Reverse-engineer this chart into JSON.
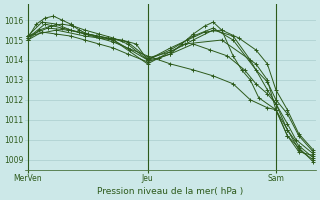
{
  "title": "",
  "xlabel": "Pression niveau de la mer( hPa )",
  "background_color": "#cce8e8",
  "plot_bg_color": "#cce8e8",
  "grid_color": "#aacece",
  "line_color": "#2d5a1b",
  "text_color": "#2d5a1b",
  "ylim": [
    1008.5,
    1016.8
  ],
  "yticks": [
    1009,
    1010,
    1011,
    1012,
    1013,
    1014,
    1015,
    1016
  ],
  "xtick_labels": [
    "MerVen",
    "Jeu",
    "Sam"
  ],
  "xtick_positions": [
    0.0,
    42.0,
    87.0
  ],
  "vline_positions": [
    0.0,
    42.0,
    87.0
  ],
  "xlim": [
    -1,
    101
  ],
  "series": [
    {
      "x": [
        0,
        3,
        6,
        9,
        12,
        15,
        18,
        21,
        28,
        33,
        38,
        42,
        46,
        50,
        54,
        58,
        62,
        65,
        68,
        72,
        75,
        78,
        81,
        87,
        91,
        95,
        100
      ],
      "y": [
        1015.1,
        1015.8,
        1016.1,
        1016.2,
        1016.0,
        1015.8,
        1015.5,
        1015.3,
        1015.1,
        1015.0,
        1014.8,
        1014.0,
        1014.1,
        1014.3,
        1014.8,
        1015.3,
        1015.7,
        1015.9,
        1015.5,
        1014.2,
        1013.5,
        1013.0,
        1012.1,
        1011.5,
        1010.5,
        1009.5,
        1009.0
      ]
    },
    {
      "x": [
        0,
        5,
        10,
        15,
        20,
        25,
        30,
        35,
        42,
        50,
        58,
        65,
        72,
        78,
        84,
        87,
        91,
        95,
        100
      ],
      "y": [
        1015.2,
        1015.9,
        1015.8,
        1015.5,
        1015.3,
        1015.1,
        1014.9,
        1014.6,
        1014.2,
        1013.8,
        1013.5,
        1013.2,
        1012.8,
        1012.0,
        1011.6,
        1011.5,
        1010.2,
        1009.4,
        1009.2
      ]
    },
    {
      "x": [
        0,
        4,
        8,
        12,
        16,
        20,
        25,
        30,
        35,
        42,
        50,
        58,
        65,
        72,
        80,
        84,
        87,
        91,
        95,
        100
      ],
      "y": [
        1015.0,
        1015.5,
        1015.7,
        1015.8,
        1015.7,
        1015.5,
        1015.3,
        1015.1,
        1014.8,
        1014.0,
        1014.5,
        1015.2,
        1015.6,
        1015.0,
        1013.5,
        1012.9,
        1012.0,
        1011.3,
        1010.2,
        1009.4
      ]
    },
    {
      "x": [
        0,
        6,
        12,
        18,
        24,
        30,
        36,
        42,
        50,
        56,
        62,
        68,
        74,
        80,
        84,
        87,
        91,
        95,
        100
      ],
      "y": [
        1015.1,
        1015.8,
        1015.6,
        1015.4,
        1015.2,
        1015.0,
        1014.5,
        1014.0,
        1014.6,
        1015.0,
        1015.4,
        1015.5,
        1015.1,
        1014.5,
        1013.8,
        1012.5,
        1011.5,
        1010.3,
        1009.5
      ]
    },
    {
      "x": [
        0,
        5,
        10,
        15,
        20,
        25,
        30,
        35,
        42,
        50,
        58,
        64,
        70,
        76,
        80,
        84,
        87,
        91,
        94,
        100
      ],
      "y": [
        1015.0,
        1015.4,
        1015.3,
        1015.2,
        1015.0,
        1014.8,
        1014.6,
        1014.3,
        1013.9,
        1014.3,
        1014.8,
        1014.5,
        1014.2,
        1013.5,
        1012.8,
        1012.3,
        1011.8,
        1010.8,
        1010.0,
        1009.3
      ]
    },
    {
      "x": [
        0,
        7,
        14,
        21,
        28,
        35,
        42,
        50,
        58,
        65,
        72,
        78,
        84,
        87,
        91,
        95,
        100
      ],
      "y": [
        1015.2,
        1015.6,
        1015.5,
        1015.3,
        1015.1,
        1014.9,
        1014.1,
        1014.4,
        1015.0,
        1015.5,
        1015.2,
        1014.0,
        1012.5,
        1011.8,
        1010.5,
        1009.7,
        1009.1
      ]
    },
    {
      "x": [
        0,
        10,
        20,
        30,
        42,
        55,
        68,
        80,
        84,
        87,
        91,
        95,
        100
      ],
      "y": [
        1015.2,
        1015.5,
        1015.2,
        1015.0,
        1013.8,
        1014.8,
        1015.0,
        1013.8,
        1013.0,
        1011.5,
        1010.2,
        1009.6,
        1008.9
      ]
    }
  ]
}
